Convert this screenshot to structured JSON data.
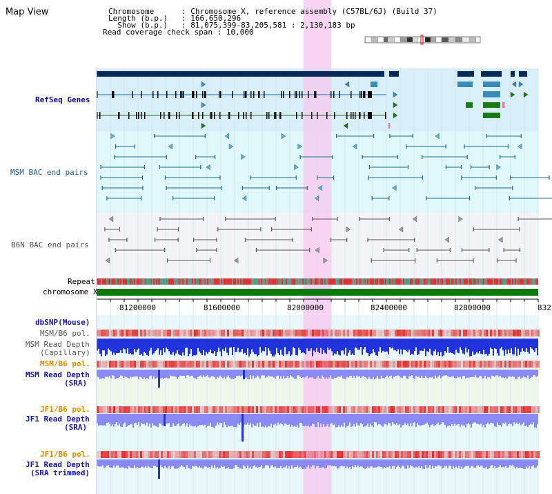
{
  "title": "Map View",
  "header": {
    "lines": [
      {
        "key": "Chromosome",
        "val": ": Chromosome X, reference assembly (C57BL/6J) (Build 37)"
      },
      {
        "key": "Length (b.p.)",
        "val": ": 166,650,296"
      },
      {
        "key": "Show (b.p.)",
        "val": ": 81,075,399-83,205,581 : 2,130,183 bp"
      },
      {
        "key": "Read coverage check span",
        "val": ": 10,000"
      }
    ]
  },
  "tracks": {
    "refseq": "RefSeq Genes",
    "msm_bac": "MSM BAC end pairs",
    "b6n_bac": "B6N BAC end pairs",
    "repeat": "Repeat",
    "chromosome": "chromosome X",
    "dbsnp": "dbSNP(Mouse)",
    "msm_pol1": "MSM/B6 pol.",
    "msm_depth_cap_1": "MSM Read Depth",
    "msm_depth_cap_2": "(Capillary)",
    "msm_pol2": "MSM/B6 pol.",
    "msm_depth_sra_1": "MSM Read Depth",
    "msm_depth_sra_2": "(SRA)",
    "jf1_pol1": "JF1/B6 pol.",
    "jf1_depth_1": "JF1 Read Depth",
    "jf1_depth_2": "(SRA)",
    "jf1_pol2": "JF1/B6 pol.",
    "jf1_trim_1": "JF1 Read Depth",
    "jf1_trim_2": "(SRA trimmed)"
  },
  "axis": {
    "ticks": [
      "81200000",
      "81600000",
      "82000000",
      "82400000",
      "82800000",
      "832"
    ]
  },
  "colors": {
    "refseq_bg": "#d8eef9",
    "msm_bg": "#e0f7fb",
    "b6n_bg": "#f4f4f6",
    "highlight": "#f6cdf0",
    "dark_navy": "#062a5a",
    "gene_blue": "#3a8ab8",
    "gene_green": "#1a7a1a",
    "depth_blue": "#2233dd",
    "depth_light": "#8a8af5",
    "pol_red": "#e23030"
  }
}
